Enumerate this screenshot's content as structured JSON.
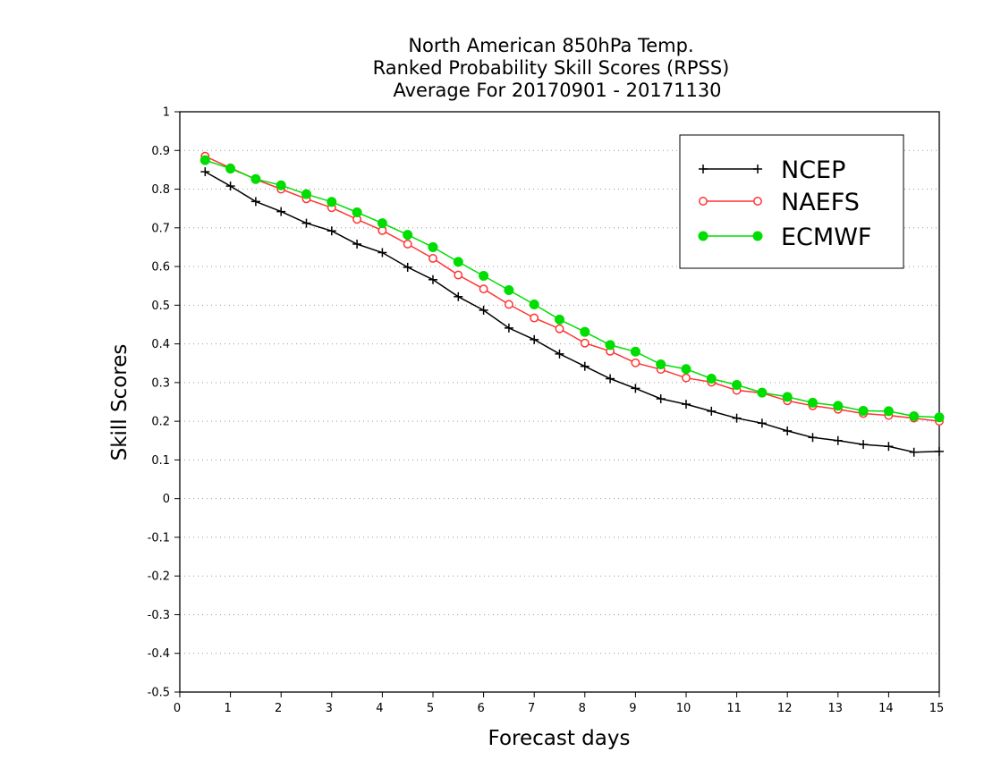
{
  "chart_data": {
    "type": "line",
    "title": [
      "North American 850hPa Temp.",
      "Ranked Probability Skill Scores (RPSS)",
      "Average For 20170901 - 20171130"
    ],
    "xlabel": "Forecast days",
    "ylabel": "Skill Scores",
    "xlim": [
      0,
      15
    ],
    "ylim": [
      -0.5,
      1
    ],
    "xticks": [
      "0",
      "1",
      "2",
      "3",
      "4",
      "5",
      "6",
      "7",
      "8",
      "9",
      "10",
      "11",
      "12",
      "13",
      "14",
      "15"
    ],
    "yticks": [
      "1",
      "0.9",
      "0.8",
      "0.7",
      "0.6",
      "0.5",
      "0.4",
      "0.3",
      "0.2",
      "0.1",
      "0",
      "-0.1",
      "-0.2",
      "-0.3",
      "-0.4",
      "-0.5"
    ],
    "ytick_values": [
      1,
      0.9,
      0.8,
      0.7,
      0.6,
      0.5,
      0.4,
      0.3,
      0.2,
      0.1,
      0,
      -0.1,
      -0.2,
      -0.3,
      -0.4,
      -0.5
    ],
    "grid": "horizontal-dotted",
    "legend_position": "top-right",
    "x": [
      0.5,
      1,
      1.5,
      2,
      2.5,
      3,
      3.5,
      4,
      4.5,
      5,
      5.5,
      6,
      6.5,
      7,
      7.5,
      8,
      8.5,
      9,
      9.5,
      10,
      10.5,
      11,
      11.5,
      12,
      12.5,
      13,
      13.5,
      14,
      14.5,
      15
    ],
    "series": [
      {
        "name": "NCEP",
        "color": "#000000",
        "marker": "plus",
        "values": [
          0.845,
          0.808,
          0.768,
          0.742,
          0.712,
          0.692,
          0.658,
          0.636,
          0.598,
          0.566,
          0.522,
          0.487,
          0.441,
          0.411,
          0.374,
          0.342,
          0.31,
          0.285,
          0.258,
          0.244,
          0.226,
          0.208,
          0.195,
          0.175,
          0.158,
          0.15,
          0.14,
          0.135,
          0.12,
          0.122
        ]
      },
      {
        "name": "NAEFS",
        "color": "#ff3333",
        "marker": "open-circle",
        "values": [
          0.885,
          0.855,
          0.825,
          0.8,
          0.775,
          0.752,
          0.722,
          0.693,
          0.658,
          0.621,
          0.578,
          0.542,
          0.502,
          0.467,
          0.439,
          0.402,
          0.381,
          0.351,
          0.334,
          0.312,
          0.301,
          0.28,
          0.273,
          0.253,
          0.24,
          0.231,
          0.22,
          0.215,
          0.208,
          0.2
        ]
      },
      {
        "name": "ECMWF",
        "color": "#00dd00",
        "marker": "filled-circle",
        "values": [
          0.875,
          0.853,
          0.826,
          0.81,
          0.787,
          0.767,
          0.74,
          0.712,
          0.682,
          0.65,
          0.612,
          0.576,
          0.539,
          0.502,
          0.463,
          0.431,
          0.397,
          0.38,
          0.347,
          0.335,
          0.31,
          0.294,
          0.274,
          0.263,
          0.248,
          0.24,
          0.227,
          0.226,
          0.213,
          0.21
        ]
      }
    ]
  }
}
